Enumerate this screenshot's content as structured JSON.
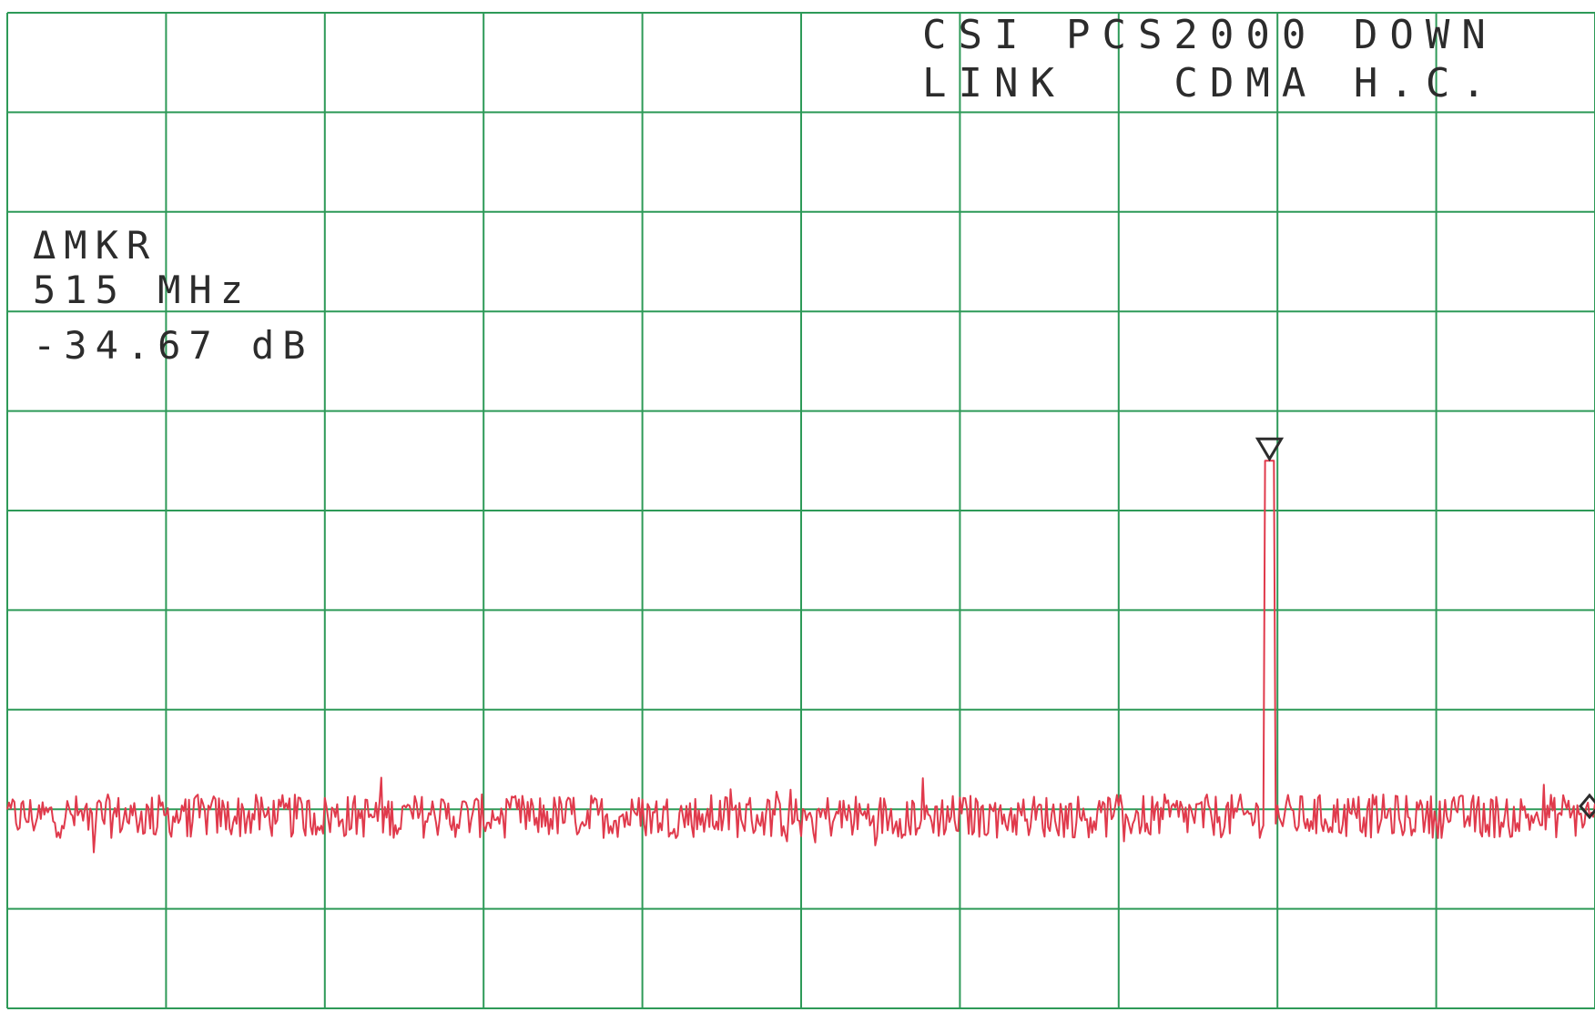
{
  "chart_data": {
    "type": "line",
    "title_lines": [
      "CSI PCS2000 DOWN",
      "LINK   CDMA H.C."
    ],
    "marker": {
      "label": "ΔMKR",
      "frequency": "515 MHz",
      "amplitude": "-34.67 dB"
    },
    "grid": {
      "on": true,
      "x_divisions": 10,
      "y_divisions": 10
    },
    "xlim": [
      0,
      10
    ],
    "ylim": [
      0,
      10
    ],
    "noise_floor_level": 1.93,
    "noise_amplitude": 0.22,
    "peak": {
      "x": 7.95,
      "level": 5.5,
      "marker_symbol": "triangle-down"
    },
    "colors": {
      "grid": "#2e9a58",
      "trace": "#e03a4c",
      "text": "#2c2c2c",
      "background": "#ffffff"
    }
  }
}
